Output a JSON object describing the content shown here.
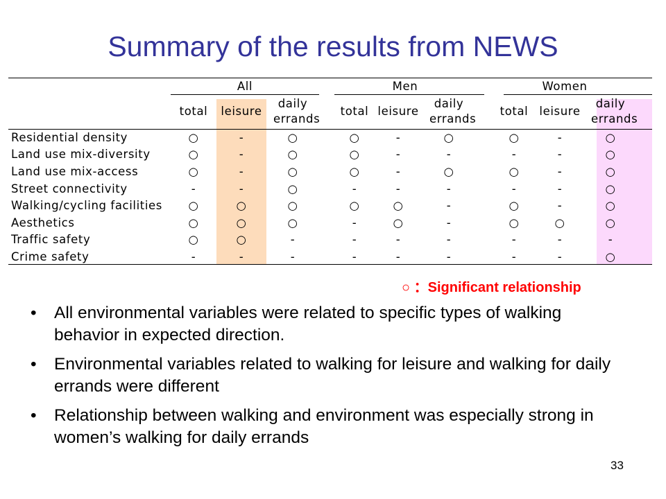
{
  "slide": {
    "title": "Summary of the results from NEWS",
    "page_number": "33"
  },
  "table": {
    "groups": [
      "All",
      "Men",
      "Women"
    ],
    "subheaders": [
      "total",
      "leisure",
      "daily errands"
    ],
    "rows": [
      {
        "label": "Residential density",
        "marks": [
          "○",
          "-",
          "○",
          "○",
          "-",
          "○",
          "○",
          "-",
          "○"
        ]
      },
      {
        "label": "Land use mix-diversity",
        "marks": [
          "○",
          "-",
          "○",
          "○",
          "-",
          "-",
          "-",
          "-",
          "○"
        ]
      },
      {
        "label": "Land use mix-access",
        "marks": [
          "○",
          "-",
          "○",
          "○",
          "-",
          "○",
          "○",
          "-",
          "○"
        ]
      },
      {
        "label": "Street connectivity",
        "marks": [
          "-",
          "-",
          "○",
          "-",
          "-",
          "-",
          "-",
          "-",
          "○"
        ]
      },
      {
        "label": "Walking/cycling facilities",
        "marks": [
          "○",
          "○",
          "○",
          "○",
          "○",
          "-",
          "○",
          "-",
          "○"
        ]
      },
      {
        "label": "Aesthetics",
        "marks": [
          "○",
          "○",
          "○",
          "-",
          "○",
          "-",
          "○",
          "○",
          "○"
        ]
      },
      {
        "label": "Traffic safety",
        "marks": [
          "○",
          "○",
          "-",
          "-",
          "-",
          "-",
          "-",
          "-",
          "-"
        ]
      },
      {
        "label": "Crime safety",
        "marks": [
          "-",
          "-",
          "-",
          "-",
          "-",
          "-",
          "-",
          "-",
          "○"
        ]
      }
    ]
  },
  "legend": "○ ：Significant relationship",
  "bullets": [
    "All environmental variables were related to specific types of walking behavior in expected direction.",
    "Environmental variables related to walking for leisure and walking for daily errands were different",
    "Relationship between walking and environment was especially strong in women’s walking for daily errands"
  ],
  "bullet_glyph": "•"
}
